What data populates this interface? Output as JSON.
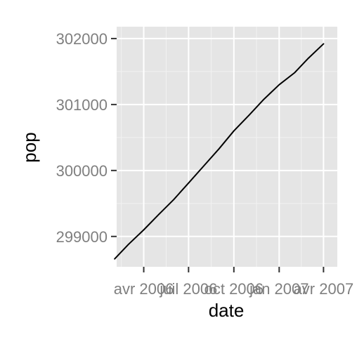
{
  "chart_data": {
    "type": "line",
    "title": "",
    "xlabel": "date",
    "ylabel": "pop",
    "x_type": "date",
    "xlim": [
      "2006-02-05",
      "2007-04-29"
    ],
    "ylim": [
      298540,
      302180
    ],
    "x_ticks": [
      {
        "value": "2006-04-01",
        "label": "avr 2006"
      },
      {
        "value": "2006-07-01",
        "label": "juil 2006"
      },
      {
        "value": "2006-10-01",
        "label": "oct 2006"
      },
      {
        "value": "2007-01-01",
        "label": "jan 2007"
      },
      {
        "value": "2007-04-01",
        "label": "avr 2007"
      }
    ],
    "y_ticks": [
      {
        "value": 299000,
        "label": "299000"
      },
      {
        "value": 300000,
        "label": "300000"
      },
      {
        "value": 301000,
        "label": "301000"
      },
      {
        "value": 302000,
        "label": "302000"
      }
    ],
    "grid": true,
    "panel_color": "#e5e5e5",
    "grid_color": "#ffffff",
    "line_color": "#000000",
    "series": [
      {
        "x": [
          "2006-02-01",
          "2006-03-01",
          "2006-04-01",
          "2006-05-01",
          "2006-06-01",
          "2006-07-01",
          "2006-08-01",
          "2006-09-01",
          "2006-10-01",
          "2006-11-01",
          "2006-12-01",
          "2007-01-01",
          "2007-02-01",
          "2007-03-01",
          "2007-04-01"
        ],
        "values": [
          298660,
          298880,
          299100,
          299330,
          299560,
          299810,
          300070,
          300330,
          300600,
          300840,
          301080,
          301300,
          301480,
          301700,
          301920
        ]
      }
    ]
  }
}
